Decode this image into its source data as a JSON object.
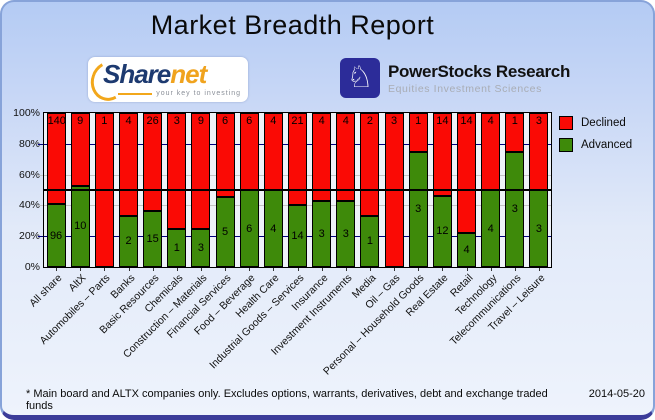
{
  "header": {
    "title": "Market Breadth Report"
  },
  "logos": {
    "sharenet": {
      "part1": "Share",
      "part2": "net",
      "tagline": "your key to investing"
    },
    "powerstocks": {
      "title": "PowerStocks  Research",
      "subtitle": "Equities Investment Sciences",
      "icon": "knight-chess-icon"
    }
  },
  "chart_data": {
    "type": "bar",
    "subtype": "percent_stacked_columns",
    "title": "Market Breadth Report",
    "categories": [
      "All share",
      "AltX",
      "Automobiles – Parts",
      "Banks",
      "Basic Resources",
      "Chemicals",
      "Construction – Materials",
      "Financial Services",
      "Food – Beverage",
      "Health Care",
      "Industrial Goods – Services",
      "Insurance",
      "Investment Instruments",
      "Media",
      "Oil – Gas",
      "Personal – Household Goods",
      "Real Estate",
      "Retail",
      "Technology",
      "Telecommunications",
      "Travel – Leisure"
    ],
    "series": [
      {
        "name": "Declined",
        "color": "#fa0a05",
        "values": [
          140,
          9,
          1,
          4,
          26,
          3,
          9,
          6,
          6,
          4,
          21,
          4,
          4,
          2,
          3,
          1,
          14,
          14,
          4,
          1,
          3
        ]
      },
      {
        "name": "Advanced",
        "color": "#3e8a0a",
        "values": [
          96,
          10,
          0,
          2,
          15,
          1,
          3,
          5,
          6,
          4,
          14,
          3,
          3,
          1,
          0,
          3,
          12,
          4,
          4,
          3,
          3
        ]
      }
    ],
    "value_axis": {
      "ticks": [
        "0%",
        "20%",
        "40%",
        "60%",
        "80%",
        "100%"
      ],
      "min": 0,
      "max": 100,
      "unit": "percent"
    },
    "reference_line": {
      "value": 50,
      "color": "#000000"
    },
    "grid": {
      "major_color": "#000080",
      "minor_color": "#c4c4c4",
      "major_at": [
        20,
        80
      ],
      "minor_at": [
        40,
        60
      ]
    },
    "legend_position": "top-right-outside",
    "bar_value_labels": "shown-on-segments"
  },
  "footer": {
    "note": "* Main board and ALTX companies only. Excludes options, warrants, derivatives, debt and exchange traded funds",
    "date": "2014-05-20"
  },
  "colors": {
    "declined": "#fa0a05",
    "advanced": "#3e8a0a",
    "plot_background": "#eef2f8",
    "card_gradient_top": "#b4cbf4",
    "card_gradient_bottom": "#eef3fc",
    "card_border": "#87a3d9",
    "card_bottom_edge": "#3c3c99"
  }
}
